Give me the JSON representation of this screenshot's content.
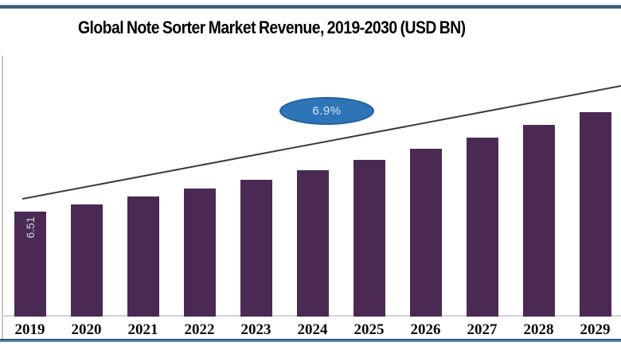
{
  "window": {
    "background": "#ffffff"
  },
  "header": {
    "title": "Global Note Sorter Market Revenue, 2019-2030 (USD BN)"
  },
  "decorations": {
    "top_border_color": "#31536f",
    "bottom_border_color": "#5e8aad",
    "axis_line_color": "#d6d3d9",
    "left_line_color": "#c9c6cc"
  },
  "annotation": {
    "label": "6.9%",
    "fill": "#2e75b8",
    "border": "#1e5f9e",
    "text_color": "#d3e5f6"
  },
  "chart_data": {
    "type": "bar",
    "title": "Global Note Sorter Market Revenue, 2019-2030 (USD BN)",
    "units": "USD BN",
    "categories": [
      "2019",
      "2020",
      "2021",
      "2022",
      "2023",
      "2024",
      "2025",
      "2026",
      "2027",
      "2028",
      "2029"
    ],
    "values": [
      6.51,
      6.96,
      7.44,
      7.95,
      8.5,
      9.09,
      9.71,
      10.38,
      11.1,
      11.86,
      12.68
    ],
    "value_labels": [
      "6.51",
      "",
      "",
      "",
      "",
      "",
      "",
      "",
      "",
      "",
      ""
    ],
    "bar_color": "#4a2a52",
    "bar_label_color": "#d9d1de",
    "trend_line": {
      "label": "6.9%",
      "color": "#3f3747"
    },
    "grid": false,
    "legend_position": "none",
    "ylim": [
      0,
      14
    ]
  }
}
